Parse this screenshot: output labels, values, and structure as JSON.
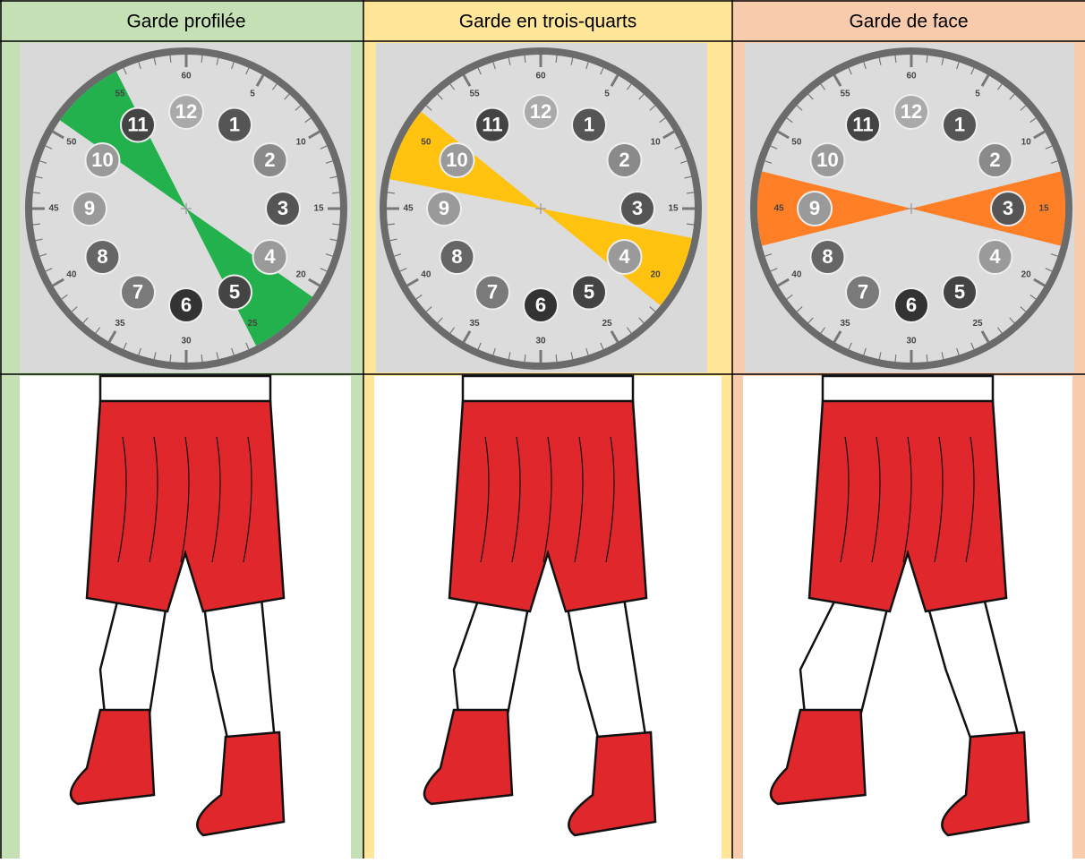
{
  "headers": [
    "Garde profilée",
    "Garde en trois-quarts",
    "Garde de face"
  ],
  "clock": {
    "hours": [
      1,
      2,
      3,
      4,
      5,
      6,
      7,
      8,
      9,
      10,
      11,
      12
    ],
    "minutes": [
      5,
      10,
      15,
      20,
      25,
      30,
      35,
      40,
      45,
      50,
      55,
      60
    ]
  }
}
